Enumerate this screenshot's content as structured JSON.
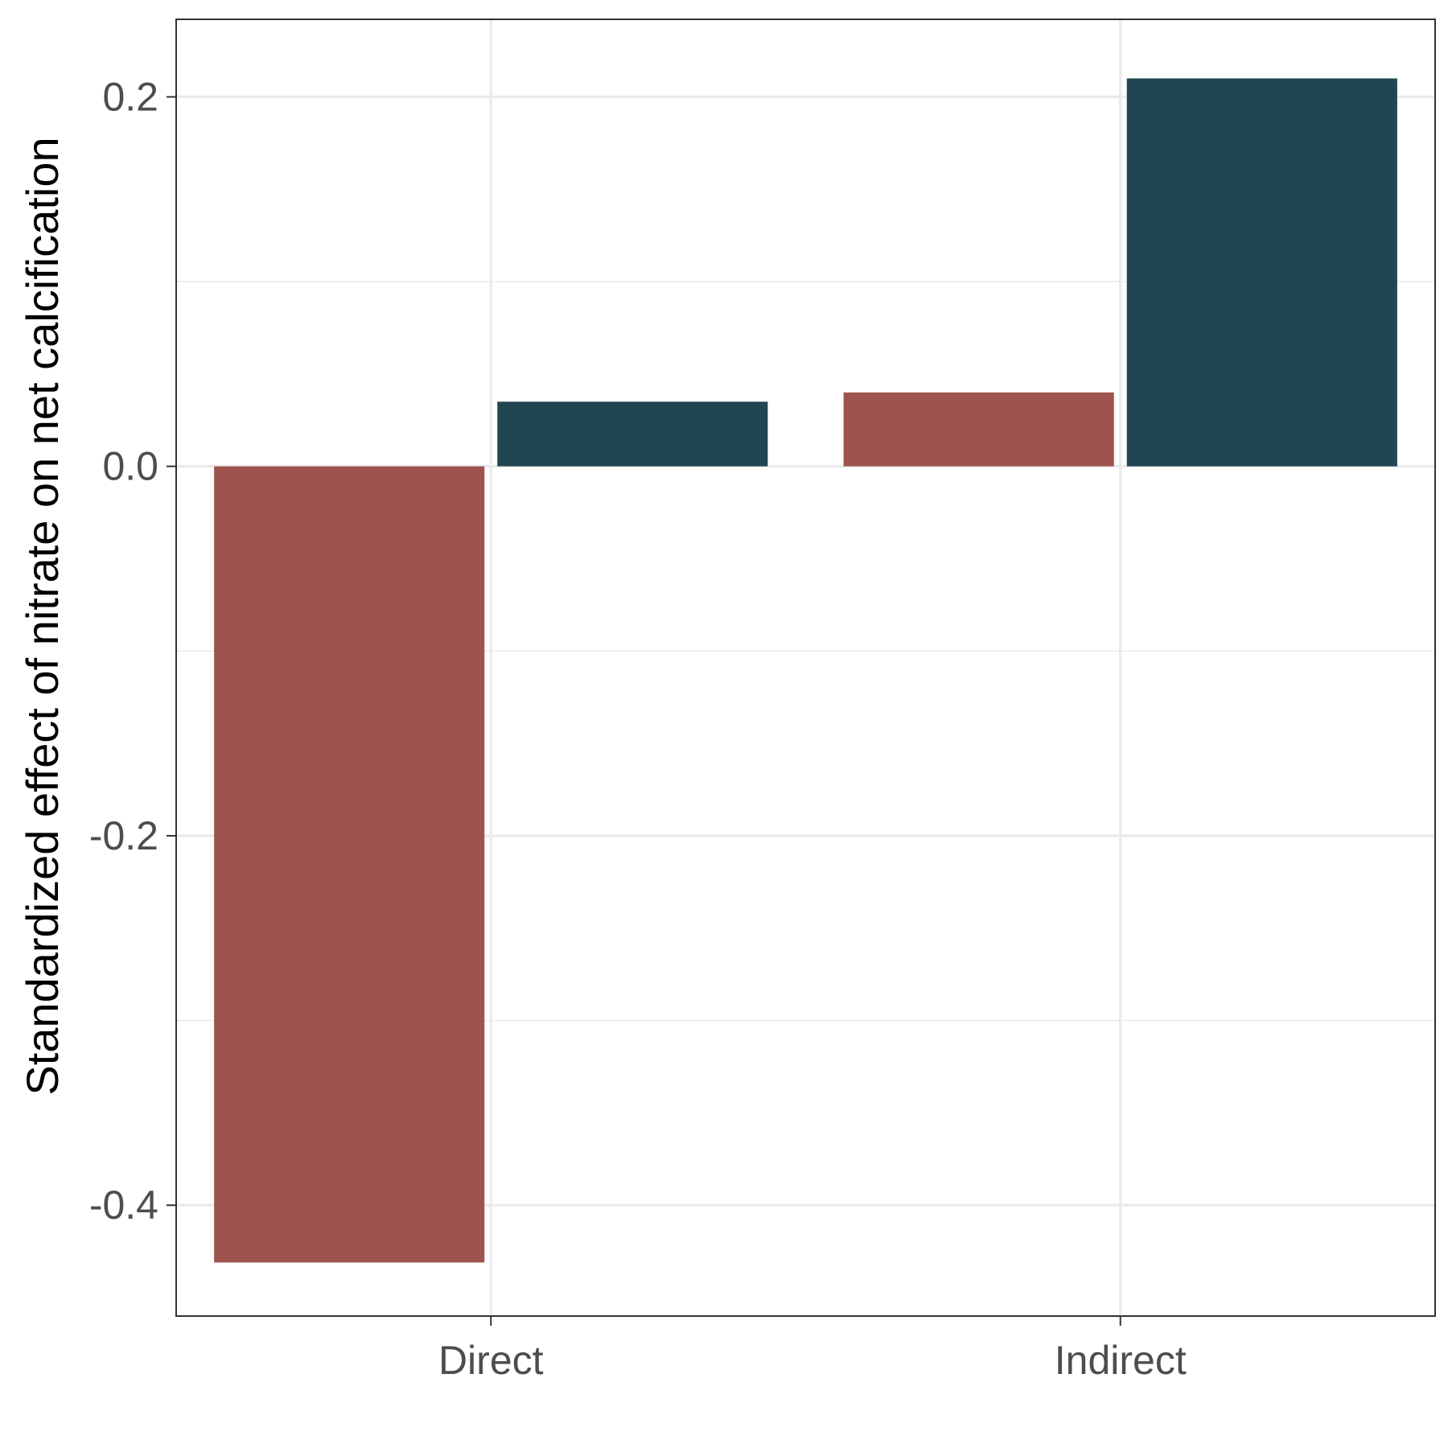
{
  "chart_data": {
    "type": "bar",
    "categories": [
      "Direct",
      "Indirect"
    ],
    "series": [
      {
        "values": [
          -0.431,
          0.04
        ],
        "color": "#9e534f"
      },
      {
        "values": [
          0.035,
          0.21
        ],
        "color": "#214651"
      }
    ],
    "xlabel": "",
    "ylabel": "Standardized effect of nitrate on net calcification",
    "ylim": [
      -0.46,
      0.242
    ],
    "yticks": [
      -0.4,
      -0.2,
      0.0,
      0.2
    ],
    "ytick_labels": [
      "-0.4",
      "-0.2",
      "0.0",
      "0.2"
    ],
    "grid": true,
    "legend": "none",
    "background": "#ffffff"
  }
}
